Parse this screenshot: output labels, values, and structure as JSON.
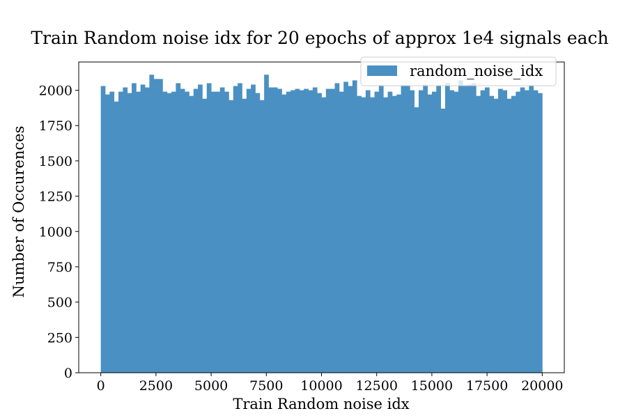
{
  "chart_data": {
    "type": "bar",
    "title": "Train Random noise idx for 20 epochs of approx 1e4 signals each",
    "xlabel": "Train Random noise idx",
    "ylabel": "Number of Occurences",
    "xlim": [
      -1000,
      21000
    ],
    "ylim": [
      0,
      2200
    ],
    "xticks": [
      0,
      2500,
      5000,
      7500,
      10000,
      12500,
      15000,
      17500,
      20000
    ],
    "yticks": [
      0,
      250,
      500,
      750,
      1000,
      1250,
      1500,
      1750,
      2000
    ],
    "bin_range": [
      0,
      20000
    ],
    "bins": 100,
    "series": [
      {
        "name": "random_noise_idx",
        "color": "#4b90c2",
        "values": [
          2030,
          1970,
          1990,
          1920,
          1990,
          2020,
          1980,
          2050,
          1990,
          2040,
          2020,
          2110,
          2080,
          2080,
          1990,
          1980,
          1990,
          2050,
          2010,
          1990,
          1960,
          2010,
          2040,
          1940,
          2050,
          1990,
          1990,
          2020,
          1990,
          1930,
          2030,
          2050,
          1940,
          2010,
          2040,
          1980,
          1930,
          2110,
          2020,
          2020,
          2010,
          1970,
          1990,
          2000,
          2010,
          2000,
          2010,
          2000,
          2020,
          1980,
          1950,
          2010,
          2010,
          2050,
          1990,
          2060,
          2030,
          2070,
          1960,
          1950,
          2000,
          1950,
          1990,
          2030,
          1950,
          1990,
          1960,
          1970,
          2030,
          2030,
          2000,
          1880,
          2000,
          2040,
          1970,
          1990,
          2030,
          1870,
          2050,
          2000,
          1990,
          2070,
          2030,
          2040,
          2050,
          1960,
          2000,
          2020,
          1960,
          1940,
          2010,
          2000,
          1940,
          1960,
          1990,
          2020,
          2000,
          2030,
          2000,
          1980
        ]
      }
    ],
    "legend": {
      "position": "top-right",
      "labels": [
        "random_noise_idx"
      ]
    },
    "grid": false
  }
}
